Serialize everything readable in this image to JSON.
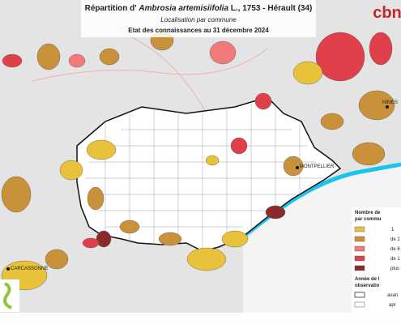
{
  "header": {
    "title_prefix": "Répartition d'",
    "title_species": "Ambrosia artemisiifolia",
    "title_suffix": "L., 1753 - Hérault (34)",
    "subtitle": "Localisation par commune",
    "date": "Etat des connaissances au 31 décembre 2024"
  },
  "places": [
    "NIMES",
    "MONTPELLIER",
    "CARCASSONNE"
  ],
  "legend": {
    "count_title": [
      "Nombre de",
      "par commu"
    ],
    "count_items": [
      "1",
      "de 2",
      "de 6",
      "de 1",
      "plus"
    ],
    "year_title": [
      "Année de l",
      "observatio"
    ],
    "year_items": [
      "avan",
      "apr"
    ]
  },
  "logo": "cbn"
}
